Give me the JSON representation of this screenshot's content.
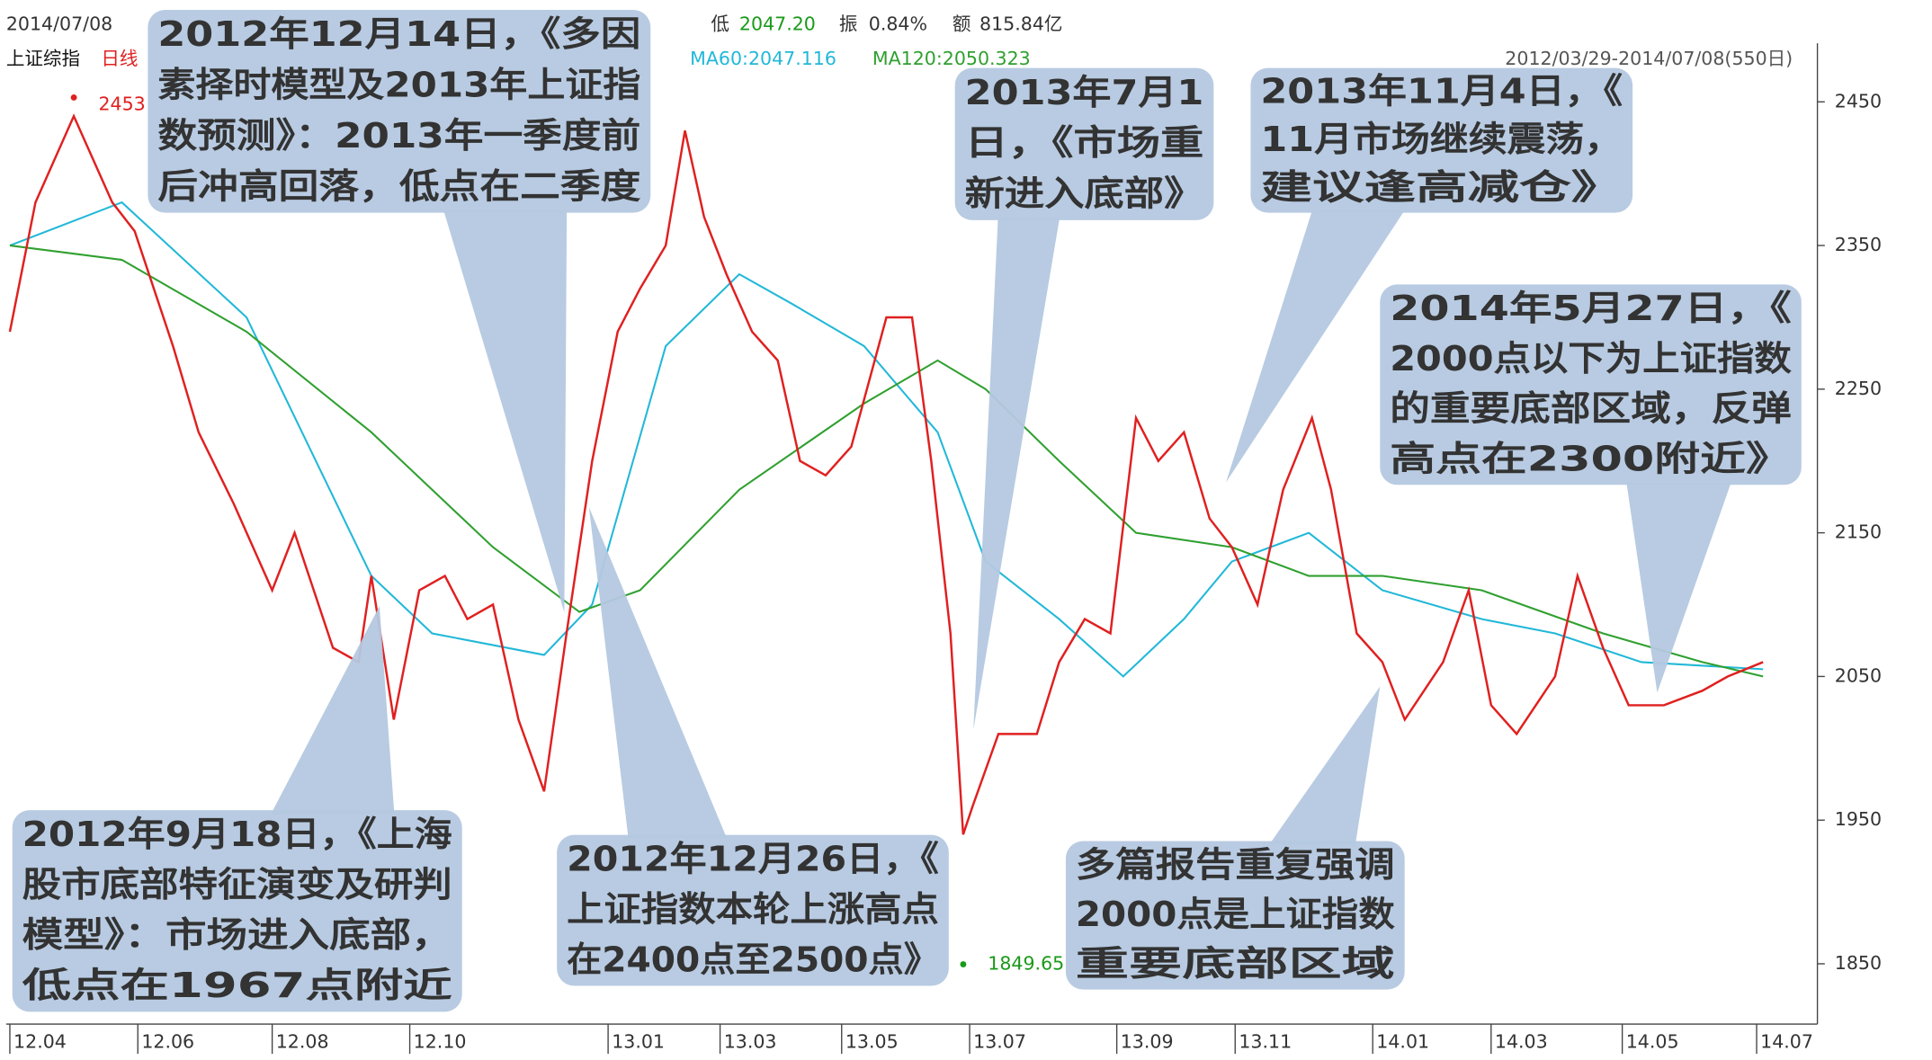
{
  "header": {
    "date": "2014/07/08",
    "low_label": "低",
    "low_value": "2047.20",
    "amp_label": "振",
    "amp_value": "0.84%",
    "amount_label": "额",
    "amount_value": "815.84亿"
  },
  "chart_data": {
    "type": "line",
    "title": "上证综指",
    "subtitle": "日线",
    "range_label": "2012/03/29-2014/07/08(550日)",
    "color": "#e02020",
    "x": [
      0,
      8,
      20,
      32,
      39,
      51,
      59,
      70,
      82,
      89,
      101,
      109,
      113,
      120,
      128,
      136,
      143,
      151,
      159,
      167,
      174,
      182,
      190,
      197,
      205,
      211,
      217,
      224,
      232,
      240,
      247,
      255,
      263,
      274,
      282,
      288,
      294,
      298,
      301,
      309,
      321,
      328,
      336,
      344,
      352,
      359,
      367,
      375,
      382,
      390,
      398,
      407,
      413,
      421,
      429,
      436,
      448,
      456,
      463,
      471,
      483,
      490,
      498,
      506,
      517,
      529,
      537,
      548
    ],
    "values": [
      2290,
      2380,
      2440,
      2380,
      2360,
      2280,
      2220,
      2170,
      2110,
      2150,
      2070,
      2060,
      2120,
      2020,
      2110,
      2120,
      2090,
      2100,
      2020,
      1970,
      2080,
      2200,
      2290,
      2320,
      2350,
      2430,
      2370,
      2330,
      2290,
      2270,
      2200,
      2190,
      2210,
      2300,
      2300,
      2200,
      2080,
      1940,
      1960,
      2010,
      2010,
      2060,
      2090,
      2080,
      2230,
      2200,
      2220,
      2160,
      2140,
      2100,
      2180,
      2230,
      2180,
      2080,
      2060,
      2020,
      2060,
      2110,
      2030,
      2010,
      2050,
      2120,
      2070,
      2030,
      2030,
      2040,
      2050,
      2060
    ],
    "series": [
      {
        "name": "MA60:2047.116",
        "color": "#22b8d8",
        "x": [
          0,
          35,
          74,
          113,
          132,
          167,
          182,
          205,
          228,
          244,
          267,
          290,
          305,
          328,
          348,
          367,
          382,
          406,
          429,
          460,
          483,
          510,
          548
        ],
        "values": [
          2350,
          2380,
          2300,
          2120,
          2080,
          2065,
          2100,
          2280,
          2330,
          2310,
          2280,
          2220,
          2130,
          2090,
          2050,
          2090,
          2130,
          2150,
          2110,
          2090,
          2080,
          2060,
          2055
        ]
      },
      {
        "name": "MA120:2050.323",
        "color": "#30a030",
        "x": [
          0,
          35,
          74,
          113,
          151,
          178,
          197,
          228,
          267,
          290,
          305,
          328,
          352,
          382,
          406,
          429,
          460,
          498,
          529,
          548
        ],
        "values": [
          2350,
          2340,
          2290,
          2220,
          2140,
          2095,
          2110,
          2180,
          2240,
          2270,
          2250,
          2200,
          2150,
          2140,
          2120,
          2120,
          2110,
          2080,
          2060,
          2050
        ]
      }
    ],
    "high": {
      "x": 20,
      "value": 2453
    },
    "low": {
      "x": 298,
      "value": 1849.65
    },
    "xlim": [
      0,
      565
    ],
    "ylim": [
      1808,
      2514
    ],
    "xticks": [
      {
        "value": 0,
        "label": "12.04"
      },
      {
        "value": 40,
        "label": "12.06"
      },
      {
        "value": 82,
        "label": "12.08"
      },
      {
        "value": 125,
        "label": "12.10"
      },
      {
        "value": 187,
        "label": "13.01"
      },
      {
        "value": 222,
        "label": "13.03"
      },
      {
        "value": 260,
        "label": "13.05"
      },
      {
        "value": 300,
        "label": "13.07"
      },
      {
        "value": 346,
        "label": "13.09"
      },
      {
        "value": 383,
        "label": "13.11"
      },
      {
        "value": 426,
        "label": "14.01"
      },
      {
        "value": 463,
        "label": "14.03"
      },
      {
        "value": 504,
        "label": "14.05"
      },
      {
        "value": 546,
        "label": "14.07"
      }
    ],
    "yticks": [
      1850,
      1950,
      2050,
      2150,
      2250,
      2350,
      2450
    ],
    "annotations": [
      {
        "lines": [
          "2012年12月14日，《多因",
          "素择时模型及2013年上证指",
          "数预测》：2013年一季度前",
          "后冲高回落，低点在二季度"
        ]
      },
      {
        "lines": [
          "2012年9月18日，《上海",
          "股市底部特征演变及研判",
          "模型》：市场进入底部，",
          "低点在1967点附近"
        ]
      },
      {
        "lines": [
          "2012年12月26日，《",
          "上证指数本轮上涨高点",
          "在2400点至2500点》"
        ]
      },
      {
        "lines": [
          "2013年7月1",
          "日，《市场重",
          "新进入底部》"
        ]
      },
      {
        "lines": [
          "2013年11月4日，《",
          "11月市场继续震荡，",
          "建议逢高减仓》"
        ]
      },
      {
        "lines": [
          "2014年5月27日，《",
          "2000点以下为上证指数",
          "的重要底部区域，反弹",
          "高点在2300附近》"
        ]
      },
      {
        "lines": [
          "多篇报告重复强调",
          "2000点是上证指数",
          "重要底部区域"
        ]
      }
    ]
  }
}
